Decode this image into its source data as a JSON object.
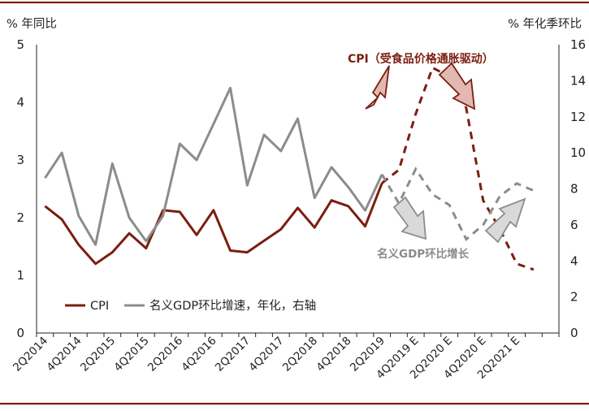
{
  "colors": {
    "cpi": "#7b1e10",
    "gdp": "#8c8c8c",
    "frame_line": "#7b1e10",
    "arrow_cpi_fill": "#e2b8b2",
    "arrow_gdp_fill": "#d9d9d9"
  },
  "axis_units": {
    "left": "% 年同比",
    "right": "% 年化季环比"
  },
  "legend": {
    "cpi": "CPI",
    "gdp": "名义GDP环比增速，年化，右轴"
  },
  "annotations": {
    "cpi": "CPI（受食品价格通胀驱动）",
    "gdp": "名义GDP环比增长"
  },
  "chart_data": {
    "type": "line",
    "x_tick_labels": [
      "2Q2014",
      "4Q2014",
      "2Q2015",
      "4Q2015",
      "2Q2016",
      "4Q2016",
      "2Q2017",
      "4Q2017",
      "2Q2018",
      "4Q2018",
      "2Q2019",
      "4Q2019 E",
      "2Q2020 E",
      "4Q2020 E",
      "2Q2021 E"
    ],
    "x": [
      "2Q2014",
      "3Q2014",
      "4Q2014",
      "1Q2015",
      "2Q2015",
      "3Q2015",
      "4Q2015",
      "1Q2016",
      "2Q2016",
      "3Q2016",
      "4Q2016",
      "1Q2017",
      "2Q2017",
      "3Q2017",
      "4Q2017",
      "1Q2018",
      "2Q2018",
      "3Q2018",
      "4Q2018",
      "1Q2019",
      "2Q2019",
      "3Q2019 E",
      "4Q2019 E",
      "1Q2020 E",
      "2Q2020 E",
      "3Q2020 E",
      "4Q2020 E",
      "1Q2021 E",
      "2Q2021 E",
      "3Q2021 E",
      "4Q2021 E"
    ],
    "yleft_ticks": [
      "0",
      "1",
      "2",
      "3",
      "4",
      "5"
    ],
    "yright_ticks": [
      "0",
      "2",
      "4",
      "6",
      "8",
      "10",
      "12",
      "14",
      "16"
    ],
    "yleft_lim": [
      0,
      5
    ],
    "yright_lim": [
      0,
      16
    ],
    "series": [
      {
        "name": "CPI",
        "axis": "left",
        "actual_end_index": 20,
        "values": [
          2.2,
          1.97,
          1.53,
          1.2,
          1.4,
          1.73,
          1.47,
          2.13,
          2.1,
          1.7,
          2.13,
          1.43,
          1.4,
          1.6,
          1.8,
          2.17,
          1.83,
          2.3,
          2.2,
          1.85,
          2.6,
          2.83,
          3.8,
          4.6,
          4.45,
          3.9,
          2.3,
          1.8,
          1.2,
          1.1,
          null
        ]
      },
      {
        "name": "名义GDP环比增速，年化，右轴",
        "axis": "right",
        "actual_end_index": 20,
        "values": [
          8.6,
          10.0,
          6.5,
          4.9,
          9.4,
          6.4,
          5.1,
          6.5,
          10.5,
          9.6,
          11.6,
          13.6,
          8.2,
          11.0,
          10.1,
          11.9,
          7.5,
          9.2,
          8.1,
          6.8,
          8.8,
          7.2,
          9.1,
          7.7,
          7.1,
          5.2,
          6.0,
          7.6,
          8.3,
          7.9,
          null
        ]
      }
    ],
    "grid": false,
    "legend_position": "bottom-left"
  }
}
